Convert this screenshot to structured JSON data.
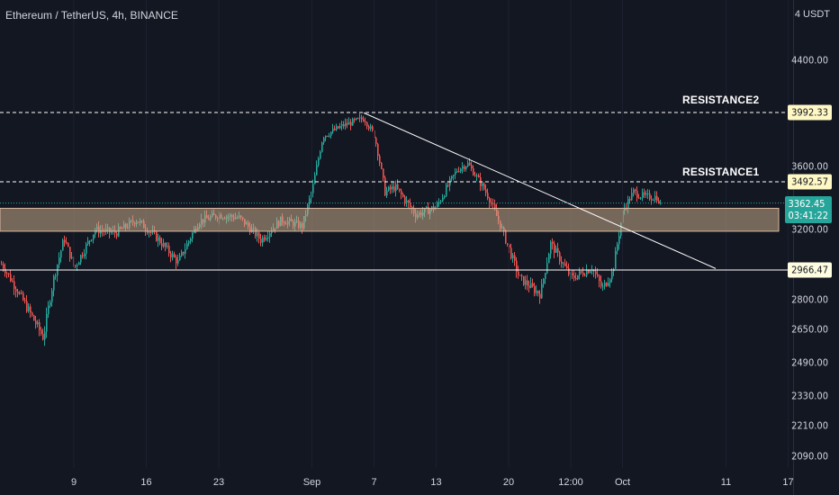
{
  "header": {
    "title": "Ethereum / TetherUS, 4h, BINANCE",
    "currency": "4 USDT"
  },
  "colors": {
    "up": "#26a69a",
    "down": "#ef5350",
    "background": "#131722",
    "zone": "#c8a98a",
    "line": "#ffffff"
  },
  "annotations": {
    "resistance2_label": "RESISTANCE2",
    "resistance1_label": "RESISTANCE1"
  },
  "price_tags": {
    "resistance2": "3992.33",
    "resistance1": "3492.57",
    "support": "2966.47",
    "last_price": "3362.45",
    "countdown": "03:41:22"
  },
  "chart_data": {
    "type": "candlestick",
    "title": "Ethereum / TetherUS, 4h, BINANCE",
    "y_axis": {
      "unit": "USDT",
      "ticks": [
        "4400.00",
        "3600.00",
        "3200.00",
        "2800.00",
        "2650.00",
        "2490.00",
        "2330.00",
        "2210.00",
        "2090.00"
      ]
    },
    "x_axis": {
      "ticks": [
        "9",
        "16",
        "23",
        "Sep",
        "7",
        "13",
        "20",
        "12:00",
        "Oct",
        "11",
        "17"
      ]
    },
    "levels": [
      {
        "label": "RESISTANCE2",
        "value": 3992.33,
        "style": "dashed"
      },
      {
        "label": "RESISTANCE1",
        "value": 3492.57,
        "style": "dashed"
      },
      {
        "value": 2966.47,
        "style": "solid"
      }
    ],
    "zone": {
      "from": 3190,
      "to": 3330
    },
    "trendline": {
      "from": {
        "x": "Sep 6",
        "y": 3990
      },
      "to": {
        "x": "Oct 10",
        "y": 2975
      }
    },
    "last": 3362.45,
    "path": [
      [
        "Aug 2",
        3000
      ],
      [
        "Aug 4",
        2800
      ],
      [
        "Aug 6",
        2610
      ],
      [
        "Aug 7",
        2920
      ],
      [
        "Aug 8",
        3150
      ],
      [
        "Aug 9",
        2980
      ],
      [
        "Aug 11",
        3200
      ],
      [
        "Aug 13",
        3180
      ],
      [
        "Aug 15",
        3260
      ],
      [
        "Aug 17",
        3150
      ],
      [
        "Aug 19",
        3010
      ],
      [
        "Aug 21",
        3250
      ],
      [
        "Aug 23",
        3290
      ],
      [
        "Aug 25",
        3270
      ],
      [
        "Aug 27",
        3140
      ],
      [
        "Aug 29",
        3260
      ],
      [
        "Aug 31",
        3220
      ],
      [
        "Sep 1",
        3450
      ],
      [
        "Sep 2",
        3820
      ],
      [
        "Sep 4",
        3900
      ],
      [
        "Sep 6",
        3950
      ],
      [
        "Sep 7",
        3820
      ],
      [
        "Sep 8",
        3430
      ],
      [
        "Sep 9",
        3460
      ],
      [
        "Sep 11",
        3290
      ],
      [
        "Sep 13",
        3340
      ],
      [
        "Sep 15",
        3580
      ],
      [
        "Sep 16",
        3620
      ],
      [
        "Sep 18",
        3400
      ],
      [
        "Sep 19",
        3250
      ],
      [
        "Sep 21",
        2920
      ],
      [
        "Sep 23",
        2830
      ],
      [
        "Sep 24",
        3120
      ],
      [
        "Sep 26",
        2920
      ],
      [
        "Sep 28",
        2980
      ],
      [
        "Sep 29",
        2860
      ],
      [
        "Sep 30",
        2960
      ],
      [
        "Oct 1",
        3320
      ],
      [
        "Oct 2",
        3430
      ],
      [
        "Oct 3",
        3400
      ]
    ]
  }
}
